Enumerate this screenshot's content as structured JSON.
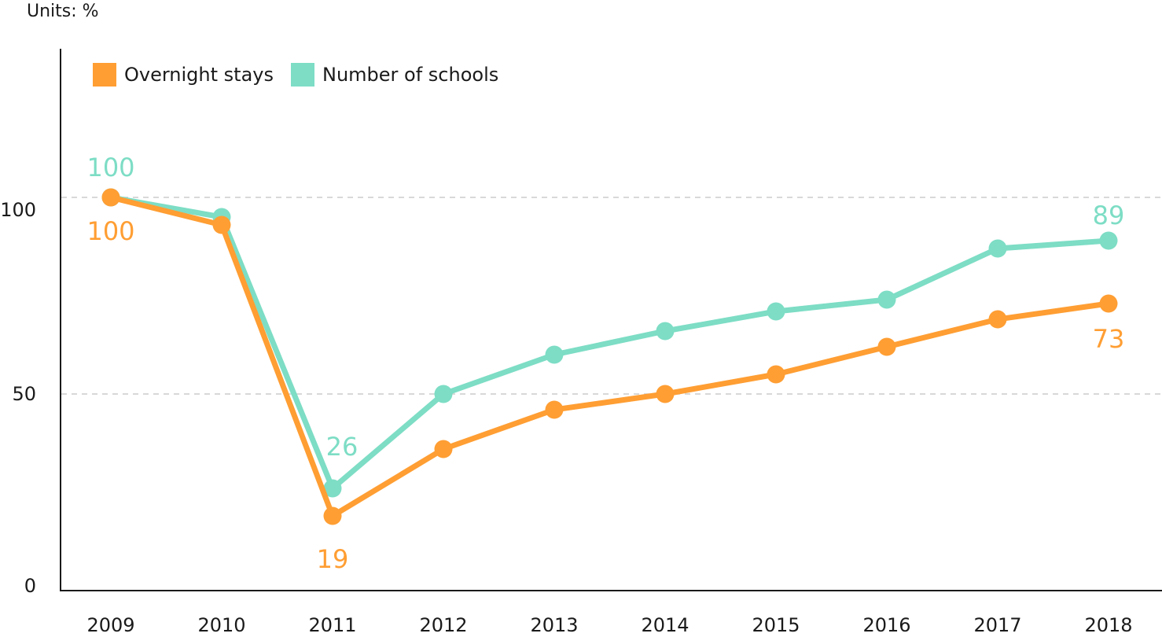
{
  "units_label": "Units: %",
  "colors": {
    "overnight": "#FF9E33",
    "schools": "#7DDDC5",
    "axis": "#1a1a1a",
    "grid": "#cccccc"
  },
  "legend": [
    {
      "label": "Overnight stays",
      "color": "#FF9E33"
    },
    {
      "label": "Number of schools",
      "color": "#7DDDC5"
    }
  ],
  "y_ticks": [
    "0",
    "50",
    "100"
  ],
  "x_ticks": [
    "2009",
    "2010",
    "2011",
    "2012",
    "2013",
    "2014",
    "2015",
    "2016",
    "2017",
    "2018"
  ],
  "data_labels": {
    "schools_2009": "100",
    "overnight_2009": "100",
    "schools_2011": "26",
    "overnight_2011": "19",
    "schools_2018": "89",
    "overnight_2018": "73"
  },
  "chart_data": {
    "type": "line",
    "title": "",
    "units": "%",
    "xlabel": "",
    "ylabel": "Units: %",
    "ylim": [
      0,
      140
    ],
    "y_ticks": [
      0,
      50,
      100
    ],
    "grid": "dashed horizontal at 50 and 100",
    "legend_position": "top-left inside",
    "categories": [
      "2009",
      "2010",
      "2011",
      "2012",
      "2013",
      "2014",
      "2015",
      "2016",
      "2017",
      "2018"
    ],
    "series": [
      {
        "name": "Overnight stays",
        "color": "#FF9E33",
        "values": [
          100,
          93,
          19,
          36,
          46,
          50,
          55,
          62,
          69,
          73
        ]
      },
      {
        "name": "Number of schools",
        "color": "#7DDDC5",
        "values": [
          100,
          95,
          26,
          50,
          60,
          66,
          71,
          74,
          87,
          89
        ]
      }
    ],
    "annotations": [
      {
        "series": "Number of schools",
        "x": "2009",
        "text": "100"
      },
      {
        "series": "Overnight stays",
        "x": "2009",
        "text": "100"
      },
      {
        "series": "Number of schools",
        "x": "2011",
        "text": "26"
      },
      {
        "series": "Overnight stays",
        "x": "2011",
        "text": "19"
      },
      {
        "series": "Number of schools",
        "x": "2018",
        "text": "89"
      },
      {
        "series": "Overnight stays",
        "x": "2018",
        "text": "73"
      }
    ]
  }
}
